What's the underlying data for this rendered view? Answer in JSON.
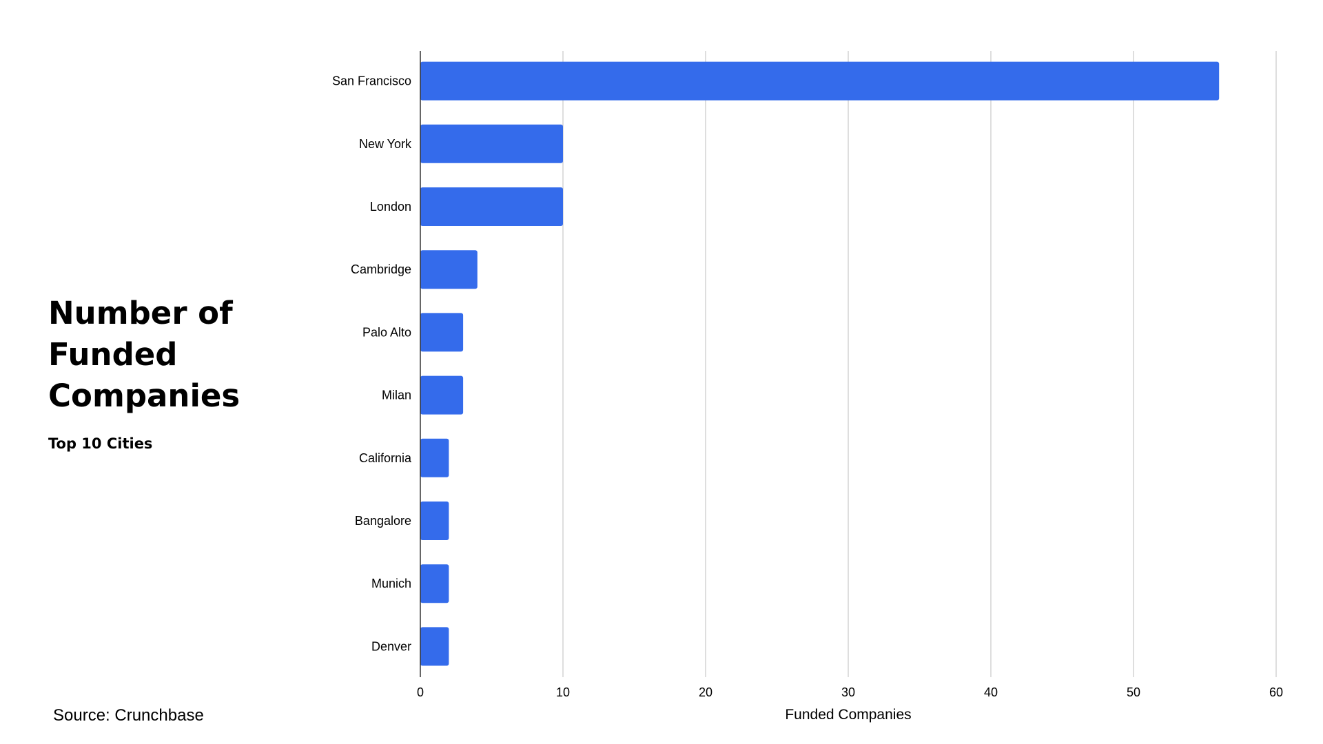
{
  "title": "Number of Funded Companies",
  "subtitle": "Top 10 Cities",
  "source": "Source: Crunchbase",
  "colors": {
    "bar": "#346beb",
    "grid": "#c8c8c8",
    "axis": "#333333"
  },
  "chart_data": {
    "type": "bar",
    "orientation": "horizontal",
    "categories": [
      "San Francisco",
      "New York",
      "London",
      "Cambridge",
      "Palo Alto",
      "Milan",
      "California",
      "Bangalore",
      "Munich",
      "Denver"
    ],
    "values": [
      56,
      10,
      10,
      4,
      3,
      3,
      2,
      2,
      2,
      2
    ],
    "xlabel": "Funded Companies",
    "ylabel": "",
    "xlim": [
      0,
      60
    ],
    "xticks": [
      0,
      10,
      20,
      30,
      40,
      50,
      60
    ],
    "grid": true,
    "legend": "none"
  }
}
